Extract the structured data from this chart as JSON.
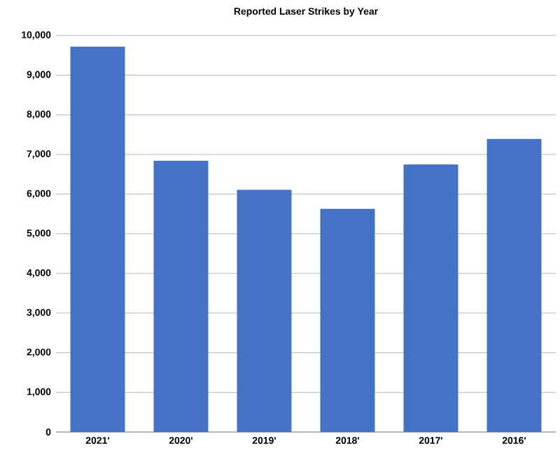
{
  "chart_data": {
    "type": "bar",
    "title": "Reported Laser Strikes by Year",
    "categories": [
      "2021'",
      "2020'",
      "2019'",
      "2018'",
      "2017'",
      "2016'"
    ],
    "values": [
      9720,
      6840,
      6110,
      5630,
      6750,
      7390
    ],
    "color": "#4472c4",
    "ylim": [
      0,
      10000
    ],
    "yticks": [
      {
        "value": 0,
        "label": "0"
      },
      {
        "value": 1000,
        "label": "1,000"
      },
      {
        "value": 2000,
        "label": "2,000"
      },
      {
        "value": 3000,
        "label": "3,000"
      },
      {
        "value": 4000,
        "label": "4,000"
      },
      {
        "value": 5000,
        "label": "5,000"
      },
      {
        "value": 6000,
        "label": "6,000"
      },
      {
        "value": 7000,
        "label": "7,000"
      },
      {
        "value": 8000,
        "label": "8,000"
      },
      {
        "value": 9000,
        "label": "9,000"
      },
      {
        "value": 10000,
        "label": "10,000"
      }
    ],
    "grid": "y"
  }
}
